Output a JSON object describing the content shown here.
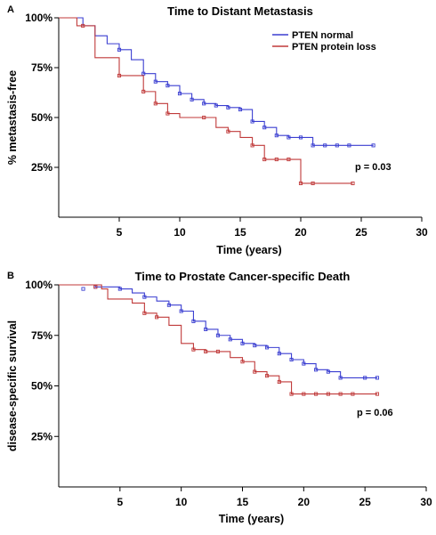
{
  "chart_data": [
    {
      "type": "line",
      "subtype": "kaplan-meier step",
      "panel": "A",
      "title": "Time to Distant Metastasis",
      "xlabel": "Time (years)",
      "ylabel": "% metastasis-free",
      "xlim": [
        0,
        30
      ],
      "ylim": [
        0,
        100
      ],
      "xticks": [
        5,
        10,
        15,
        20,
        25,
        30
      ],
      "yticks": [
        25,
        50,
        75,
        100
      ],
      "ytick_labels": [
        "25%",
        "50%",
        "75%",
        "100%"
      ],
      "legend": {
        "placement": "top-right",
        "entries": [
          "PTEN normal",
          "PTEN protein loss"
        ]
      },
      "annotation": "p = 0.03",
      "series": [
        {
          "name": "PTEN normal",
          "color": "#3b3fd1",
          "steps": [
            [
              0,
              100
            ],
            [
              1,
              100
            ],
            [
              2,
              96
            ],
            [
              3,
              91
            ],
            [
              4,
              87
            ],
            [
              5,
              84
            ],
            [
              6,
              79
            ],
            [
              7,
              72
            ],
            [
              8,
              68
            ],
            [
              9,
              66
            ],
            [
              10,
              62
            ],
            [
              11,
              59
            ],
            [
              12,
              57
            ],
            [
              13,
              56
            ],
            [
              14,
              55
            ],
            [
              15,
              54
            ],
            [
              16,
              48
            ],
            [
              17,
              45
            ],
            [
              18,
              41
            ],
            [
              19,
              40
            ],
            [
              21,
              36
            ],
            [
              22,
              36
            ],
            [
              23,
              36
            ],
            [
              24,
              36
            ],
            [
              25,
              36
            ],
            [
              26,
              36
            ]
          ],
          "censored": [
            [
              5,
              84
            ],
            [
              7,
              72
            ],
            [
              8,
              68
            ],
            [
              9,
              66
            ],
            [
              10,
              62
            ],
            [
              11,
              59
            ],
            [
              12,
              57
            ],
            [
              13,
              56
            ],
            [
              14,
              55
            ],
            [
              15,
              54
            ],
            [
              16,
              48
            ],
            [
              17,
              45
            ],
            [
              18,
              41
            ],
            [
              19,
              40
            ],
            [
              20,
              40
            ],
            [
              21,
              36
            ],
            [
              22,
              36
            ],
            [
              23,
              36
            ],
            [
              24,
              36
            ],
            [
              26,
              36
            ]
          ]
        },
        {
          "name": "PTEN protein loss",
          "color": "#c03a3a",
          "steps": [
            [
              0,
              100
            ],
            [
              1,
              100
            ],
            [
              1.5,
              96
            ],
            [
              3,
              80
            ],
            [
              5,
              71
            ],
            [
              7,
              63
            ],
            [
              8,
              57
            ],
            [
              9,
              52
            ],
            [
              10,
              50
            ],
            [
              12,
              50
            ],
            [
              13,
              45
            ],
            [
              14,
              43
            ],
            [
              15,
              40
            ],
            [
              16,
              36
            ],
            [
              17,
              29
            ],
            [
              18,
              29
            ],
            [
              19,
              29
            ],
            [
              20,
              17
            ],
            [
              21,
              17
            ],
            [
              24.3,
              17
            ]
          ],
          "censored": [
            [
              2,
              96
            ],
            [
              5,
              71
            ],
            [
              7,
              63
            ],
            [
              8,
              57
            ],
            [
              9,
              52
            ],
            [
              12,
              50
            ],
            [
              14,
              43
            ],
            [
              16,
              36
            ],
            [
              17,
              29
            ],
            [
              18,
              29
            ],
            [
              19,
              29
            ],
            [
              20,
              17
            ],
            [
              21,
              17
            ],
            [
              24.3,
              17
            ]
          ]
        }
      ]
    },
    {
      "type": "line",
      "subtype": "kaplan-meier step",
      "panel": "B",
      "title": "Time to Prostate Cancer-specific Death",
      "xlabel": "Time (years)",
      "ylabel": "disease-specific survival",
      "xlim": [
        0,
        30
      ],
      "ylim": [
        0,
        100
      ],
      "xticks": [
        5,
        10,
        15,
        20,
        25,
        30
      ],
      "yticks": [
        25,
        50,
        75,
        100
      ],
      "ytick_labels": [
        "25%",
        "50%",
        "75%",
        "100%"
      ],
      "annotation": "p = 0.06",
      "series": [
        {
          "name": "PTEN normal",
          "color": "#3b3fd1",
          "steps": [
            [
              0,
              100
            ],
            [
              2,
              100
            ],
            [
              3,
              99
            ],
            [
              5,
              98
            ],
            [
              6,
              96
            ],
            [
              7,
              94
            ],
            [
              8,
              92
            ],
            [
              9,
              90
            ],
            [
              10,
              87
            ],
            [
              11,
              82
            ],
            [
              12,
              78
            ],
            [
              13,
              75
            ],
            [
              14,
              73
            ],
            [
              15,
              71
            ],
            [
              16,
              70
            ],
            [
              17,
              69
            ],
            [
              18,
              66
            ],
            [
              19,
              63
            ],
            [
              20,
              61
            ],
            [
              21,
              58
            ],
            [
              22,
              57
            ],
            [
              23,
              54
            ],
            [
              26,
              54
            ]
          ],
          "censored": [
            [
              2,
              98
            ],
            [
              3,
              99
            ],
            [
              5,
              98
            ],
            [
              7,
              94
            ],
            [
              9,
              90
            ],
            [
              10,
              87
            ],
            [
              11,
              82
            ],
            [
              12,
              78
            ],
            [
              13,
              75
            ],
            [
              14,
              73
            ],
            [
              15,
              71
            ],
            [
              16,
              70
            ],
            [
              17,
              69
            ],
            [
              18,
              66
            ],
            [
              19,
              63
            ],
            [
              20,
              61
            ],
            [
              21,
              58
            ],
            [
              22,
              57
            ],
            [
              23,
              54
            ],
            [
              25,
              54
            ],
            [
              26,
              54
            ]
          ]
        },
        {
          "name": "PTEN protein loss",
          "color": "#c03a3a",
          "steps": [
            [
              0,
              100
            ],
            [
              2,
              100
            ],
            [
              3.5,
              98
            ],
            [
              4,
              93
            ],
            [
              6,
              91
            ],
            [
              7,
              86
            ],
            [
              8,
              84
            ],
            [
              9,
              80
            ],
            [
              10,
              71
            ],
            [
              11,
              68
            ],
            [
              12,
              67
            ],
            [
              13,
              67
            ],
            [
              14,
              64
            ],
            [
              15,
              62
            ],
            [
              16,
              57
            ],
            [
              17,
              55
            ],
            [
              18,
              52
            ],
            [
              19,
              46
            ],
            [
              26,
              46
            ]
          ],
          "censored": [
            [
              3,
              99
            ],
            [
              7,
              86
            ],
            [
              8,
              84
            ],
            [
              11,
              68
            ],
            [
              12,
              67
            ],
            [
              13,
              67
            ],
            [
              15,
              62
            ],
            [
              16,
              57
            ],
            [
              17,
              55
            ],
            [
              18,
              52
            ],
            [
              19,
              46
            ],
            [
              20,
              46
            ],
            [
              21,
              46
            ],
            [
              22,
              46
            ],
            [
              23,
              46
            ],
            [
              24,
              46
            ],
            [
              26,
              46
            ]
          ]
        }
      ]
    }
  ]
}
